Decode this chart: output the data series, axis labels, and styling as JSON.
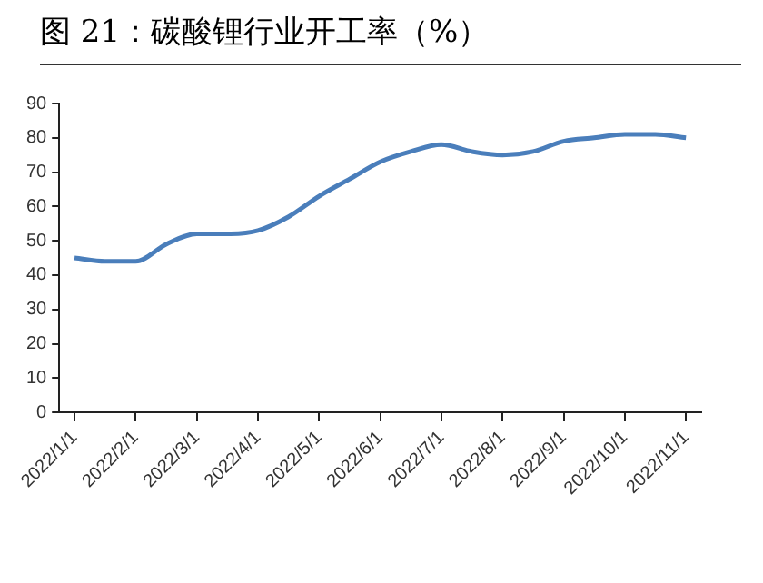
{
  "chart_data": {
    "type": "line",
    "title": "图 21：碳酸锂行业开工率（%）",
    "categories": [
      "2022/1/1",
      null,
      "2022/2/1",
      null,
      "2022/3/1",
      null,
      "2022/4/1",
      null,
      "2022/5/1",
      null,
      "2022/6/1",
      null,
      "2022/7/1",
      null,
      "2022/8/1",
      null,
      "2022/9/1",
      null,
      "2022/10/1",
      null,
      "2022/11/1"
    ],
    "series": [
      {
        "color": "#4a7ebb",
        "values": [
          45,
          44,
          44,
          49,
          52,
          52,
          53,
          57,
          63,
          68,
          73,
          76,
          78,
          76,
          75,
          76,
          79,
          80,
          81,
          81,
          80
        ]
      }
    ],
    "ylim": [
      0,
      90
    ],
    "yticks": [
      0,
      10,
      20,
      30,
      40,
      50,
      60,
      70,
      80,
      90
    ],
    "grid": false,
    "legend": false,
    "marker": "none",
    "line_style": "solid"
  }
}
